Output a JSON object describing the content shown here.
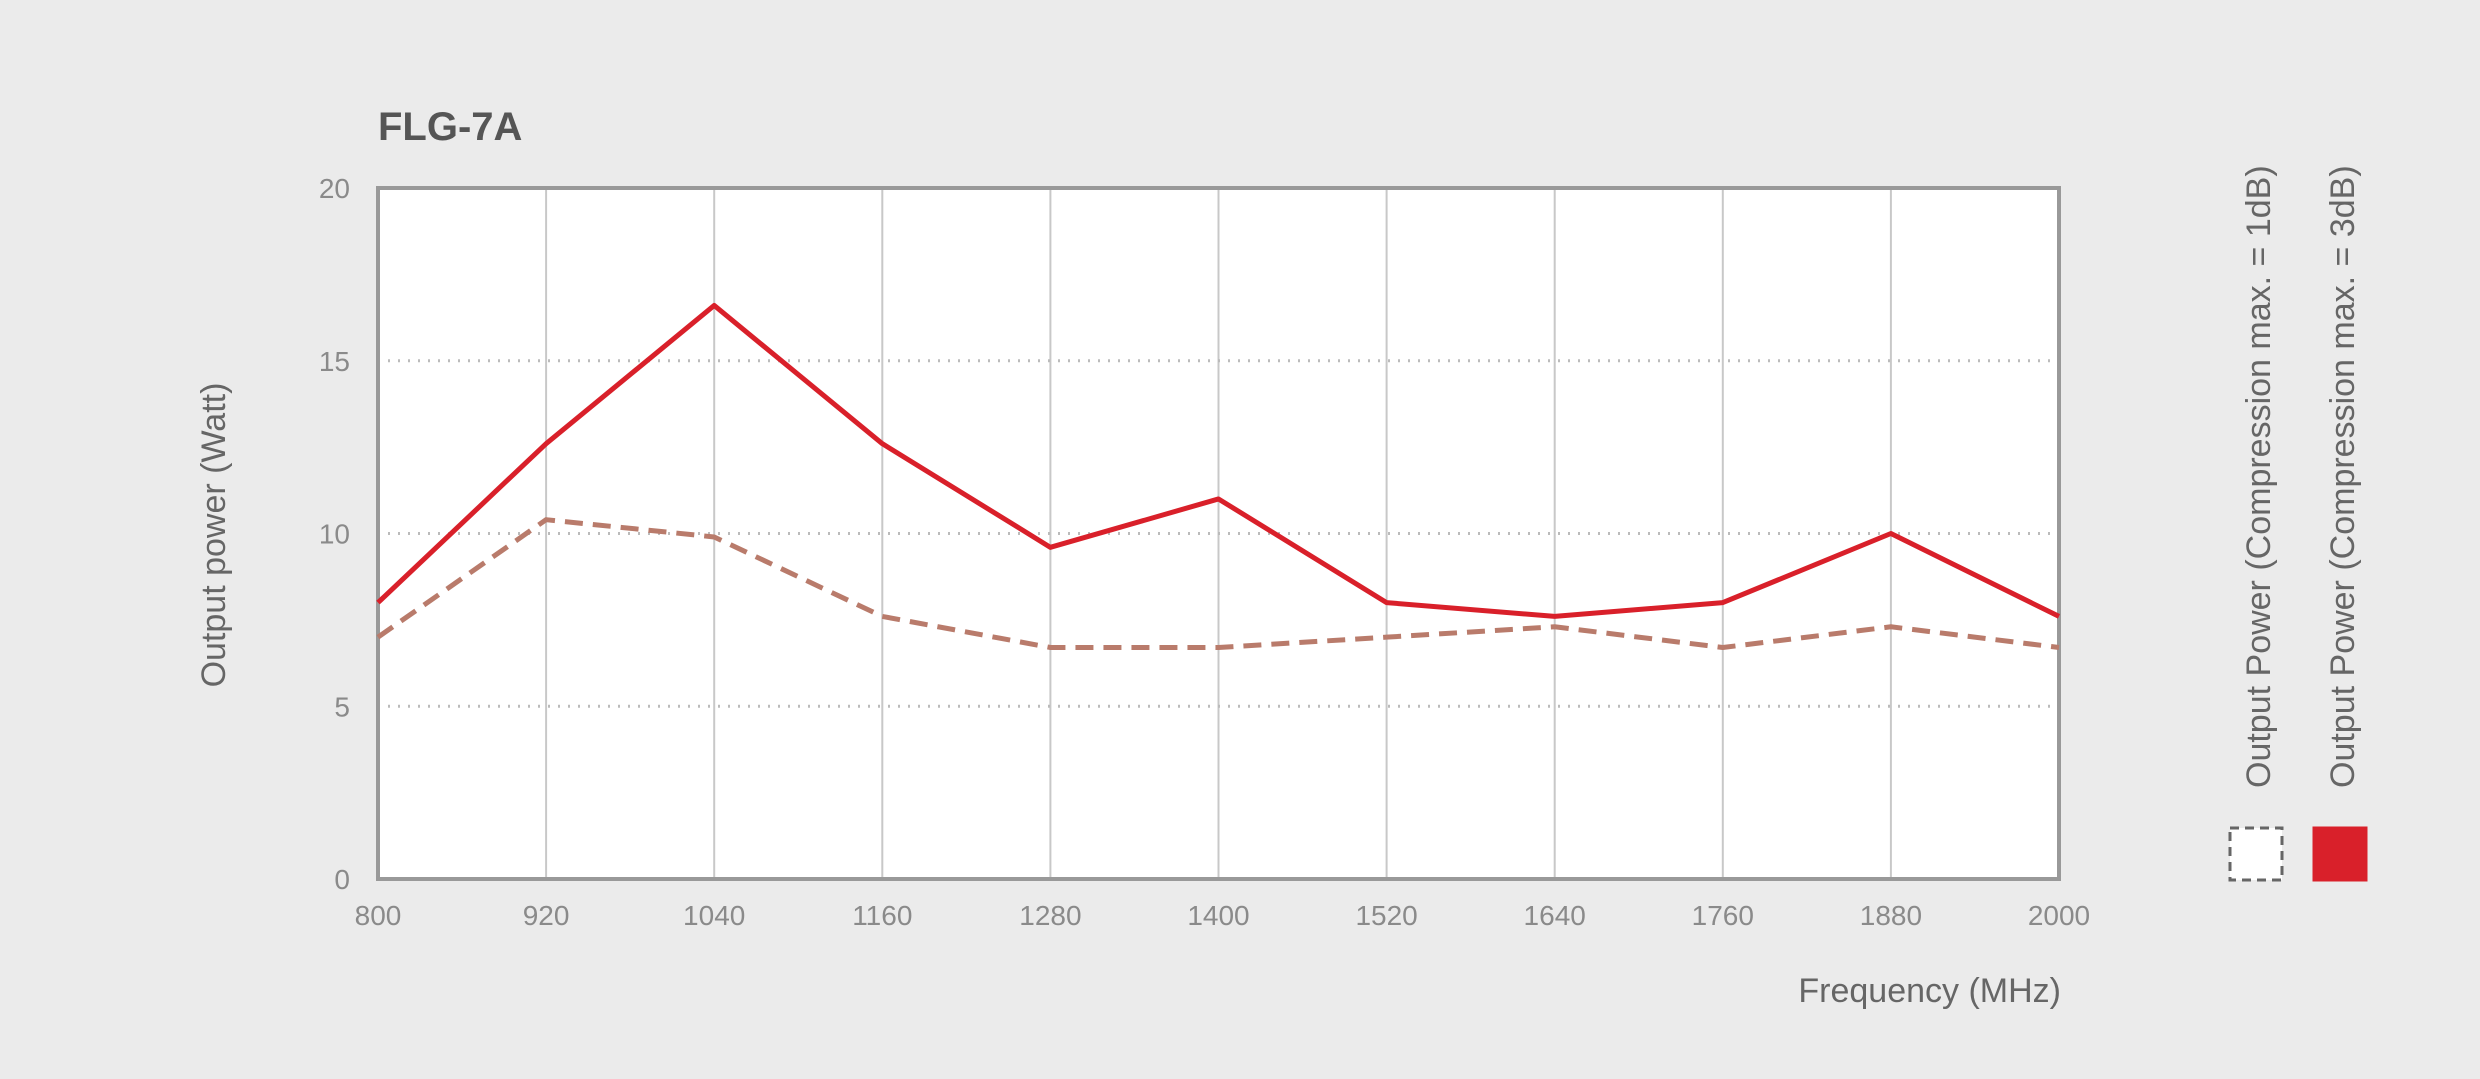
{
  "chart_data": {
    "type": "line",
    "title": "FLG-7A",
    "x_label": "Frequency (MHz)",
    "y_label": "Output power (Watt)",
    "x": [
      800,
      920,
      1040,
      1160,
      1280,
      1400,
      1520,
      1640,
      1760,
      1880,
      2000
    ],
    "series": [
      {
        "name": "Output Power (Compression max. = 1dB)",
        "color": "#b97b6b",
        "line_style": "dashed",
        "values": [
          7.0,
          10.4,
          9.9,
          7.6,
          6.7,
          6.7,
          7.0,
          7.3,
          6.7,
          7.3,
          6.7
        ]
      },
      {
        "name": "Output Power (Compression max. = 3dB)",
        "color": "#d9202a",
        "line_style": "solid",
        "values": [
          8.0,
          12.6,
          16.6,
          12.6,
          9.6,
          11.0,
          8.0,
          7.6,
          8.0,
          10.0,
          7.6
        ]
      }
    ],
    "xlim": [
      800,
      2000
    ],
    "xticks": [
      800,
      920,
      1040,
      1160,
      1280,
      1400,
      1520,
      1640,
      1760,
      1880,
      2000
    ],
    "ylim": [
      0,
      20
    ],
    "yticks": [
      0,
      5,
      10,
      15,
      20
    ],
    "grid": true,
    "legend": "right"
  }
}
